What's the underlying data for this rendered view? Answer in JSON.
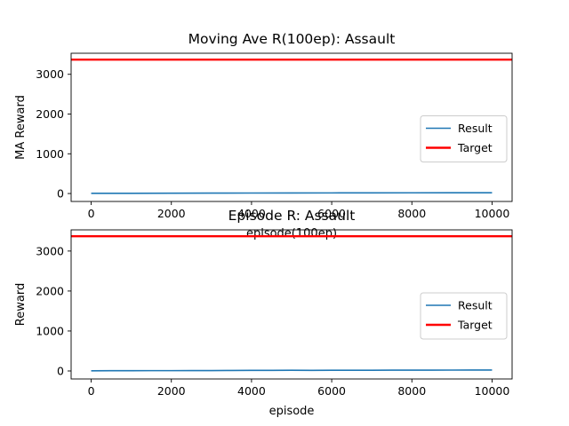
{
  "chart_data": [
    {
      "type": "line",
      "title": "Moving Ave R(100ep): Assault",
      "xlabel": "episode(100ep)",
      "ylabel": "MA Reward",
      "xlim": [
        -500,
        10500
      ],
      "ylim": [
        -200,
        3530
      ],
      "xticks": [
        0,
        2000,
        4000,
        6000,
        8000,
        10000
      ],
      "yticks": [
        0,
        1000,
        2000,
        3000
      ],
      "grid": false,
      "legend": "center-right",
      "series": [
        {
          "name": "Result",
          "color": "#1f77b4",
          "x": [
            0,
            1000,
            2000,
            3000,
            4000,
            5000,
            6000,
            7000,
            8000,
            9000,
            10000
          ],
          "values": [
            5,
            6,
            8,
            10,
            12,
            14,
            15,
            17,
            18,
            19,
            20
          ]
        },
        {
          "name": "Target",
          "color": "#ff0000",
          "x": [
            -500,
            10500
          ],
          "values": [
            3370,
            3370
          ]
        }
      ]
    },
    {
      "type": "line",
      "title": "Episode R: Assault",
      "xlabel": "episode",
      "ylabel": "Reward",
      "xlim": [
        -500,
        10500
      ],
      "ylim": [
        -200,
        3530
      ],
      "xticks": [
        0,
        2000,
        4000,
        6000,
        8000,
        10000
      ],
      "yticks": [
        0,
        1000,
        2000,
        3000
      ],
      "grid": false,
      "legend": "center-right",
      "series": [
        {
          "name": "Result",
          "color": "#1f77b4",
          "x": [
            0,
            500,
            1000,
            1500,
            2000,
            2500,
            3000,
            3500,
            4000,
            4500,
            5000,
            5500,
            6000,
            6500,
            7000,
            7500,
            8000,
            8500,
            9000,
            9500,
            10000
          ],
          "values": [
            5,
            6,
            7,
            8,
            8,
            9,
            10,
            12,
            14,
            16,
            18,
            16,
            17,
            18,
            19,
            20,
            20,
            21,
            22,
            23,
            24
          ]
        },
        {
          "name": "Target",
          "color": "#ff0000",
          "x": [
            -500,
            10500
          ],
          "values": [
            3370,
            3370
          ]
        }
      ]
    }
  ]
}
